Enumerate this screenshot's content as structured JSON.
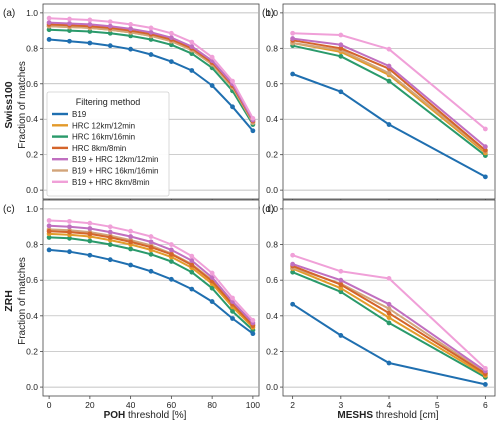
{
  "figure": {
    "row_labels": [
      "Swiss100",
      "ZRH"
    ],
    "ylabel": "Fraction of matches",
    "legend": {
      "title": "Filtering method",
      "entries": [
        "B19",
        "HRC 12km/12min",
        "HRC 16km/16min",
        "HRC 8km/8min",
        "B19 + HRC 12km/12min",
        "B19 + HRC 16km/16min",
        "B19 + HRC 8km/8min"
      ]
    }
  },
  "chart_data": [
    {
      "id": "a",
      "panel_label": "(a)",
      "type": "line",
      "xlabel_bold": "",
      "xlabel_rest": "",
      "ylim": [
        -0.05,
        1.05
      ],
      "xlim": [
        -3,
        103
      ],
      "xticks": [
        0,
        20,
        40,
        60,
        80,
        100
      ],
      "yticks": [
        0.0,
        0.2,
        0.4,
        0.6,
        0.8,
        1.0
      ],
      "grid": "horizontal",
      "x": [
        0,
        10,
        20,
        30,
        40,
        50,
        60,
        70,
        80,
        90,
        100
      ],
      "series": [
        {
          "name": "B19",
          "color": "#1f6fb0",
          "values": [
            0.85,
            0.84,
            0.83,
            0.815,
            0.795,
            0.765,
            0.725,
            0.675,
            0.59,
            0.47,
            0.335
          ]
        },
        {
          "name": "HRC 12km/12min",
          "color": "#e39a2a",
          "values": [
            0.925,
            0.92,
            0.915,
            0.905,
            0.89,
            0.87,
            0.84,
            0.79,
            0.71,
            0.58,
            0.385
          ]
        },
        {
          "name": "HRC 16km/16min",
          "color": "#2a9a6b",
          "values": [
            0.905,
            0.9,
            0.895,
            0.885,
            0.87,
            0.85,
            0.82,
            0.77,
            0.69,
            0.56,
            0.37
          ]
        },
        {
          "name": "HRC 8km/8min",
          "color": "#d4652b",
          "values": [
            0.935,
            0.93,
            0.925,
            0.915,
            0.9,
            0.88,
            0.85,
            0.8,
            0.72,
            0.59,
            0.39
          ]
        },
        {
          "name": "B19 + HRC 12km/12min",
          "color": "#c06fc0",
          "values": [
            0.945,
            0.94,
            0.935,
            0.925,
            0.91,
            0.89,
            0.86,
            0.81,
            0.73,
            0.6,
            0.395
          ]
        },
        {
          "name": "B19 + HRC 16km/16min",
          "color": "#d2a47a",
          "values": [
            0.925,
            0.92,
            0.915,
            0.905,
            0.89,
            0.87,
            0.84,
            0.79,
            0.71,
            0.58,
            0.38
          ]
        },
        {
          "name": "B19 + HRC 8km/8min",
          "color": "#f0a0d8",
          "values": [
            0.97,
            0.965,
            0.96,
            0.95,
            0.935,
            0.915,
            0.885,
            0.835,
            0.75,
            0.615,
            0.405
          ]
        }
      ]
    },
    {
      "id": "b",
      "panel_label": "(b)",
      "type": "line",
      "xlabel_bold": "",
      "xlabel_rest": "",
      "ylim": [
        -0.05,
        1.05
      ],
      "xlim": [
        1.8,
        6.2
      ],
      "xticks": [
        2,
        3,
        4,
        5,
        6
      ],
      "yticks": [
        0.0,
        0.2,
        0.4,
        0.6,
        0.8,
        1.0
      ],
      "grid": "horizontal",
      "x": [
        2,
        3,
        4,
        6
      ],
      "series": [
        {
          "name": "B19",
          "color": "#1f6fb0",
          "values": [
            0.655,
            0.555,
            0.37,
            0.075
          ]
        },
        {
          "name": "HRC 12km/12min",
          "color": "#e39a2a",
          "values": [
            0.83,
            0.78,
            0.65,
            0.21
          ]
        },
        {
          "name": "HRC 16km/16min",
          "color": "#2a9a6b",
          "values": [
            0.815,
            0.755,
            0.615,
            0.195
          ]
        },
        {
          "name": "HRC 8km/8min",
          "color": "#d4652b",
          "values": [
            0.845,
            0.8,
            0.685,
            0.225
          ]
        },
        {
          "name": "B19 + HRC 12km/12min",
          "color": "#c06fc0",
          "values": [
            0.855,
            0.82,
            0.7,
            0.245
          ]
        },
        {
          "name": "B19 + HRC 16km/16min",
          "color": "#d2a47a",
          "values": [
            0.83,
            0.79,
            0.66,
            0.22
          ]
        },
        {
          "name": "B19 + HRC 8km/8min",
          "color": "#f0a0d8",
          "values": [
            0.885,
            0.875,
            0.795,
            0.345
          ]
        }
      ]
    },
    {
      "id": "c",
      "panel_label": "(c)",
      "type": "line",
      "xlabel_bold": "POH",
      "xlabel_rest": " threshold [%]",
      "ylim": [
        -0.05,
        1.05
      ],
      "xlim": [
        -3,
        103
      ],
      "xticks": [
        0,
        20,
        40,
        60,
        80,
        100
      ],
      "yticks": [
        0.0,
        0.2,
        0.4,
        0.6,
        0.8,
        1.0
      ],
      "grid": "horizontal",
      "x": [
        0,
        10,
        20,
        30,
        40,
        50,
        60,
        70,
        80,
        90,
        100
      ],
      "series": [
        {
          "name": "B19",
          "color": "#1f6fb0",
          "values": [
            0.77,
            0.76,
            0.74,
            0.715,
            0.685,
            0.65,
            0.605,
            0.55,
            0.48,
            0.385,
            0.3
          ]
        },
        {
          "name": "HRC 12km/12min",
          "color": "#e39a2a",
          "values": [
            0.86,
            0.855,
            0.845,
            0.825,
            0.8,
            0.77,
            0.73,
            0.67,
            0.58,
            0.45,
            0.335
          ]
        },
        {
          "name": "HRC 16km/16min",
          "color": "#2a9a6b",
          "values": [
            0.84,
            0.835,
            0.82,
            0.8,
            0.775,
            0.745,
            0.705,
            0.645,
            0.555,
            0.425,
            0.32
          ]
        },
        {
          "name": "HRC 8km/8min",
          "color": "#d4652b",
          "values": [
            0.875,
            0.87,
            0.86,
            0.84,
            0.815,
            0.785,
            0.745,
            0.685,
            0.595,
            0.465,
            0.345
          ]
        },
        {
          "name": "B19 + HRC 12km/12min",
          "color": "#c06fc0",
          "values": [
            0.905,
            0.9,
            0.89,
            0.87,
            0.845,
            0.815,
            0.77,
            0.71,
            0.615,
            0.48,
            0.36
          ]
        },
        {
          "name": "B19 + HRC 16km/16min",
          "color": "#d2a47a",
          "values": [
            0.885,
            0.88,
            0.87,
            0.85,
            0.825,
            0.795,
            0.75,
            0.69,
            0.6,
            0.465,
            0.35
          ]
        },
        {
          "name": "B19 + HRC 8km/8min",
          "color": "#f0a0d8",
          "values": [
            0.935,
            0.93,
            0.92,
            0.9,
            0.875,
            0.845,
            0.8,
            0.735,
            0.64,
            0.5,
            0.375
          ]
        }
      ]
    },
    {
      "id": "d",
      "panel_label": "(d)",
      "type": "line",
      "xlabel_bold": "MESHS",
      "xlabel_rest": " threshold [cm]",
      "ylim": [
        -0.05,
        1.05
      ],
      "xlim": [
        1.8,
        6.2
      ],
      "xticks": [
        2,
        3,
        4,
        5,
        6
      ],
      "yticks": [
        0.0,
        0.2,
        0.4,
        0.6,
        0.8,
        1.0
      ],
      "grid": "horizontal",
      "x": [
        2,
        3,
        4,
        6
      ],
      "series": [
        {
          "name": "B19",
          "color": "#1f6fb0",
          "values": [
            0.465,
            0.29,
            0.135,
            0.015
          ]
        },
        {
          "name": "HRC 12km/12min",
          "color": "#e39a2a",
          "values": [
            0.665,
            0.555,
            0.39,
            0.065
          ]
        },
        {
          "name": "HRC 16km/16min",
          "color": "#2a9a6b",
          "values": [
            0.645,
            0.535,
            0.36,
            0.055
          ]
        },
        {
          "name": "HRC 8km/8min",
          "color": "#d4652b",
          "values": [
            0.68,
            0.575,
            0.415,
            0.075
          ]
        },
        {
          "name": "B19 + HRC 12km/12min",
          "color": "#c06fc0",
          "values": [
            0.69,
            0.6,
            0.465,
            0.09
          ]
        },
        {
          "name": "B19 + HRC 16km/16min",
          "color": "#d2a47a",
          "values": [
            0.67,
            0.58,
            0.44,
            0.08
          ]
        },
        {
          "name": "B19 + HRC 8km/8min",
          "color": "#f0a0d8",
          "values": [
            0.74,
            0.65,
            0.61,
            0.105
          ]
        }
      ]
    }
  ]
}
